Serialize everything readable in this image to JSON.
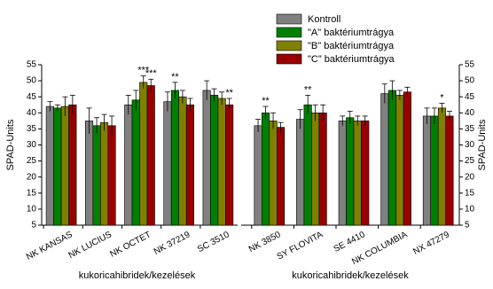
{
  "chart_data": [
    {
      "type": "bar",
      "ylabel": "SPAD-Units",
      "xlabel": "kukoricahibridek/kezelések",
      "categories": [
        "NK KANSAS",
        "NK LUCIUS",
        "NK OCTET",
        "NK 37219",
        "SC 3510"
      ],
      "ylim": [
        5,
        55
      ],
      "yticks": [
        5,
        10,
        15,
        20,
        25,
        30,
        35,
        40,
        45,
        50,
        55
      ],
      "series": [
        {
          "color": "#808080",
          "values": [
            42,
            37.5,
            42.5,
            43.5,
            47
          ],
          "errors": [
            1.5,
            4,
            3,
            3,
            3
          ],
          "significance": [
            null,
            null,
            null,
            null,
            null
          ]
        },
        {
          "color": "#008000",
          "values": [
            41.5,
            36,
            44,
            47,
            45.5
          ],
          "errors": [
            1,
            2.5,
            3,
            2.5,
            2
          ],
          "significance": [
            null,
            null,
            null,
            "**",
            null
          ]
        },
        {
          "color": "#808000",
          "values": [
            42,
            37,
            49.5,
            45,
            44.5
          ],
          "errors": [
            3,
            2.5,
            2,
            2,
            2
          ],
          "significance": [
            null,
            null,
            "***",
            null,
            null
          ]
        },
        {
          "color": "#990000",
          "values": [
            42.5,
            36,
            48.5,
            42.5,
            42.5
          ],
          "errors": [
            3,
            3,
            2,
            2,
            2
          ],
          "significance": [
            null,
            null,
            "***",
            null,
            "**"
          ]
        }
      ]
    },
    {
      "type": "bar",
      "ylabel": "SPAD-Units",
      "xlabel": "kukoricahibridek/kezelések",
      "categories": [
        "NK 3850",
        "SY FLOVITA",
        "SE 4410",
        "NK COLUMBIA",
        "NX 47279"
      ],
      "ylim": [
        5,
        55
      ],
      "yticks": [
        5,
        10,
        15,
        20,
        25,
        30,
        35,
        40,
        45,
        50,
        55
      ],
      "series": [
        {
          "name": "Kontroll",
          "color": "#808080",
          "values": [
            36,
            38,
            37.5,
            46,
            39
          ],
          "errors": [
            2,
            3,
            1.5,
            3,
            2.5
          ],
          "significance": [
            null,
            null,
            null,
            null,
            null
          ]
        },
        {
          "name": "\"A\" baktériumtrágya",
          "color": "#008000",
          "values": [
            40,
            42.5,
            38.5,
            47,
            39
          ],
          "errors": [
            2,
            3,
            2,
            3,
            2.5
          ],
          "significance": [
            "**",
            "**",
            null,
            null,
            null
          ]
        },
        {
          "name": "\"B\" baktériumtrágya",
          "color": "#808000",
          "values": [
            37.5,
            40,
            37.5,
            45.5,
            41.5
          ],
          "errors": [
            2.5,
            2.5,
            1.5,
            1.5,
            1.5
          ],
          "significance": [
            null,
            null,
            null,
            null,
            "*"
          ]
        },
        {
          "name": "\"C\" baktériumtrágya",
          "color": "#990000",
          "values": [
            35.5,
            40,
            37.5,
            46.5,
            39
          ],
          "errors": [
            1.5,
            2.5,
            1.5,
            1.5,
            1.5
          ],
          "significance": [
            null,
            null,
            null,
            null,
            null
          ]
        }
      ]
    }
  ]
}
